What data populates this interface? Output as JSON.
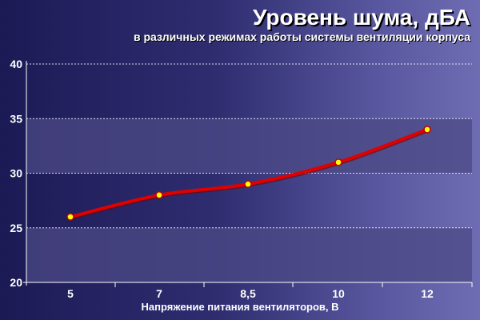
{
  "title": "Уровень шума, дБА",
  "subtitle": "в различных режимах работы системы вентиляции корпуса",
  "colors": {
    "line": "#e00000",
    "marker_fill": "#ffff00",
    "marker_stroke": "#c00000",
    "band": "#4c4a86",
    "axis": "#ffffff"
  },
  "chart_data": {
    "type": "line",
    "title": "Уровень шума, дБА",
    "subtitle": "в различных режимах работы системы вентиляции корпуса",
    "xlabel": "Напряжение питания вентиляторов, В",
    "ylabel": "",
    "categories": [
      "5",
      "7",
      "8,5",
      "10",
      "12"
    ],
    "series": [
      {
        "values": [
          26,
          28,
          29,
          31,
          34
        ]
      }
    ],
    "ylim": [
      20,
      40
    ],
    "yticks": [
      "20",
      "25",
      "30",
      "35",
      "40"
    ],
    "grid": true,
    "legend": "none"
  }
}
